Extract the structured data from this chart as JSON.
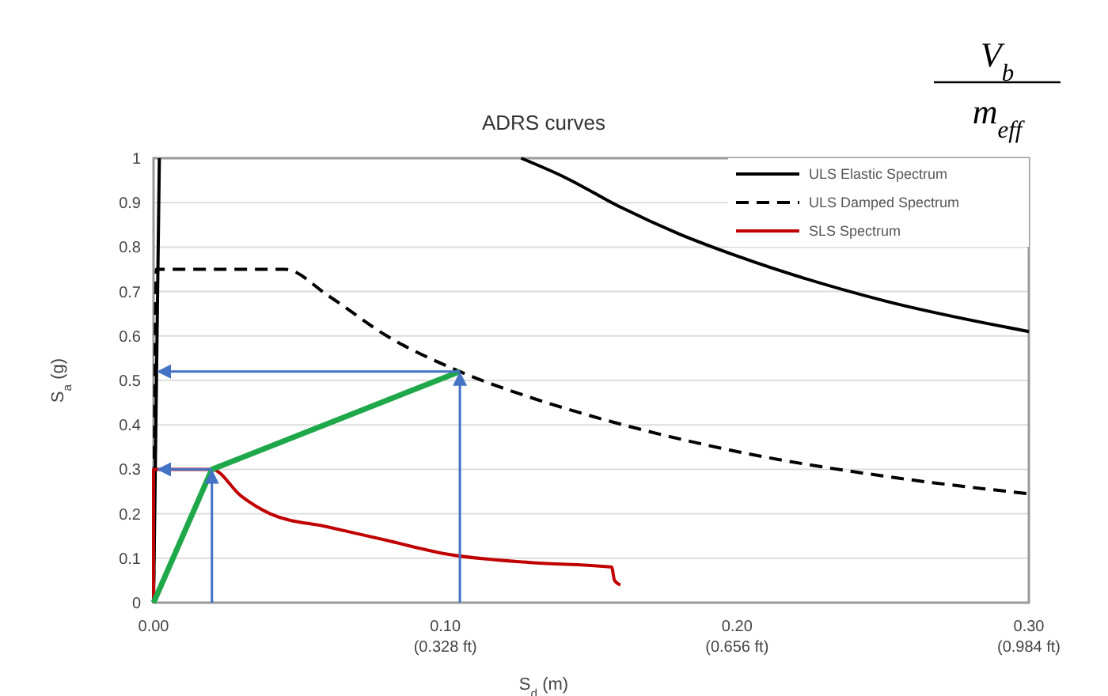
{
  "chart_data": {
    "type": "line",
    "title": "ADRS curves",
    "xlabel": "S$_{d}$ (m)",
    "ylabel": "S$_{a}$ (g)",
    "annotations": [
      "V$_{b}$",
      "m$_{eff}$",
      "(0.328 ft)",
      "(0.656 ft)",
      "(0.984 ft)"
    ],
    "xlim": [
      0,
      0.3
    ],
    "xticks": [
      {
        "value": 0,
        "label": "0.00"
      },
      {
        "value": 0.1,
        "label": "0.10"
      },
      {
        "value": 0.2,
        "label": "0.20"
      },
      {
        "value": 0.3,
        "label": "0.30"
      }
    ],
    "ylim": [
      0,
      1
    ],
    "yticks": [
      0,
      0.1,
      0.2,
      0.3,
      0.4,
      0.5,
      0.6,
      0.7,
      0.8,
      0.9,
      1
    ],
    "grid": "y",
    "legend": "top right",
    "series": [
      {
        "name": "ULS Elastic Spectrum",
        "color": "#000000",
        "line_style": "solid",
        "x": [
          0,
          0.002,
          0.05,
          0.126,
          0.14,
          0.16,
          0.18,
          0.2,
          0.25,
          0.3
        ],
        "values": [
          0,
          1,
          null,
          1,
          0.96,
          0.89,
          0.83,
          0.78,
          0.68,
          0.61
        ]
      },
      {
        "name": "ULS Damped Spectrum",
        "color": "#000000",
        "line_style": "dashed",
        "x": [
          0,
          0.001,
          0.045,
          0.06,
          0.08,
          0.105,
          0.13,
          0.15,
          0.2,
          0.25,
          0.3
        ],
        "values": [
          0,
          0.75,
          0.75,
          0.69,
          0.6,
          0.52,
          0.46,
          0.42,
          0.34,
          0.285,
          0.245
        ]
      },
      {
        "name": "SLS Spectrum",
        "color": "#c00000",
        "line_style": "solid",
        "x": [
          0,
          0,
          0.02,
          0.03,
          0.04,
          0.06,
          0.08,
          0.1,
          0.13,
          0.157,
          0.158,
          0.16
        ],
        "values": [
          0,
          0.3,
          0.3,
          0.24,
          0.2,
          0.17,
          0.14,
          0.11,
          0.09,
          0.08,
          0.05,
          0.04
        ]
      },
      {
        "color": "#1fa84a",
        "line_style": "solid",
        "x": [
          0,
          0.02,
          0.105
        ],
        "values": [
          0,
          0.3,
          0.52
        ]
      }
    ]
  }
}
